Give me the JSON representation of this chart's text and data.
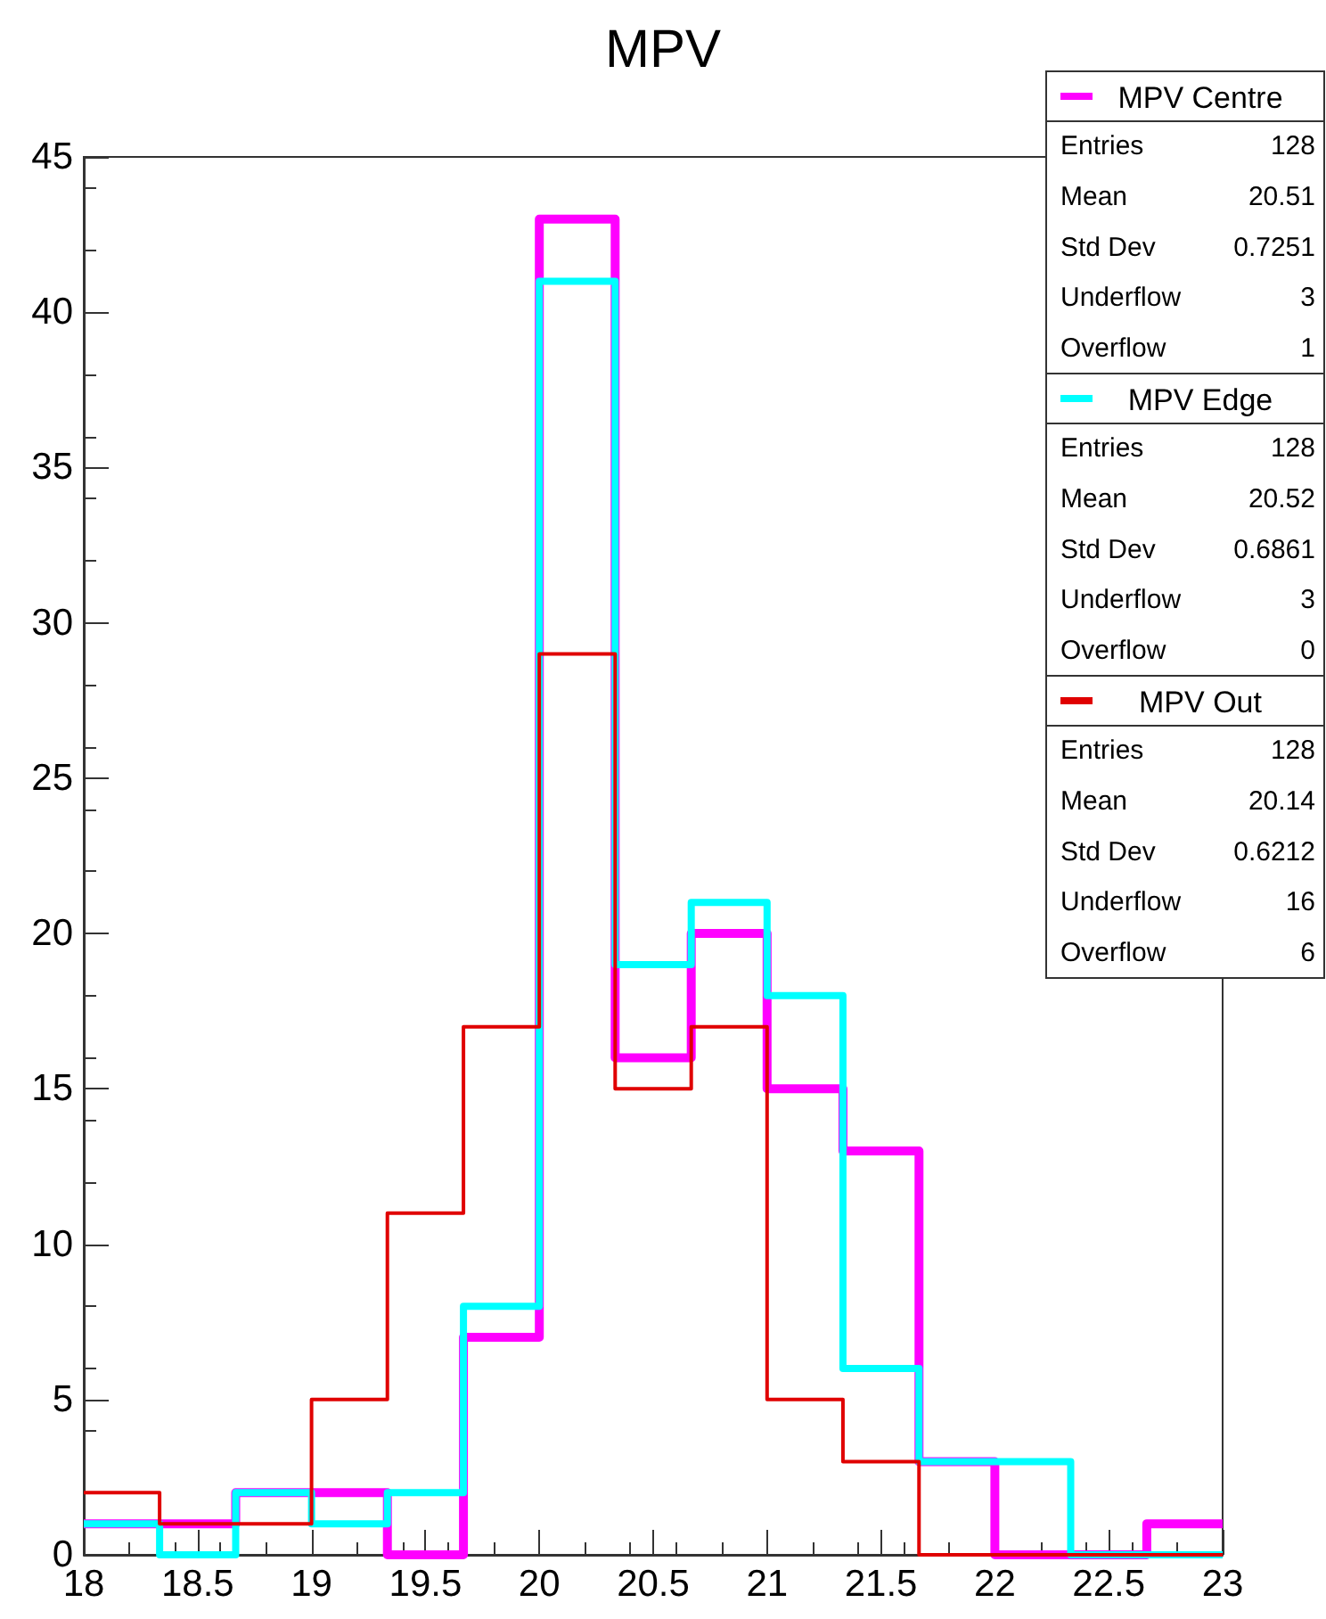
{
  "chart_data": {
    "type": "histogram",
    "title": "MPV",
    "bins": [
      18,
      18.333,
      18.667,
      19,
      19.333,
      19.667,
      20,
      20.333,
      20.667,
      21,
      21.333,
      21.667,
      22,
      22.333,
      22.667,
      23
    ],
    "series": [
      {
        "name": "MPV Centre",
        "color": "#ff00ff",
        "values": [
          1,
          1,
          2,
          2,
          0,
          7,
          43,
          16,
          20,
          15,
          13,
          3,
          0,
          0,
          1
        ]
      },
      {
        "name": "MPV Edge",
        "color": "#00ffff",
        "values": [
          1,
          0,
          2,
          1,
          2,
          8,
          41,
          19,
          21,
          18,
          6,
          3,
          3,
          0,
          0
        ]
      },
      {
        "name": "MPV Out",
        "color": "#e00000",
        "values": [
          2,
          1,
          1,
          5,
          11,
          17,
          29,
          15,
          17,
          5,
          3,
          0,
          0,
          0,
          0
        ]
      }
    ],
    "xlim": [
      18,
      23
    ],
    "xticks": [
      18,
      18.5,
      19,
      19.5,
      20,
      20.5,
      21,
      21.5,
      22,
      22.5,
      23
    ],
    "ylim": [
      0,
      45
    ],
    "yticks": [
      0,
      5,
      10,
      15,
      20,
      25,
      30,
      35,
      40,
      45
    ],
    "grid": false,
    "legend": "top right",
    "annotations": [
      "Entries 128",
      "Mean 20.51",
      "Std Dev 0.7251",
      "Underflow 3",
      "Overflow 1",
      "Entries 128",
      "Mean 20.52",
      "Std Dev 0.6861",
      "Underflow 3",
      "Overflow 0",
      "Entries 128",
      "Mean 20.14",
      "Std Dev 0.6212",
      "Underflow 16",
      "Overflow 6"
    ]
  }
}
